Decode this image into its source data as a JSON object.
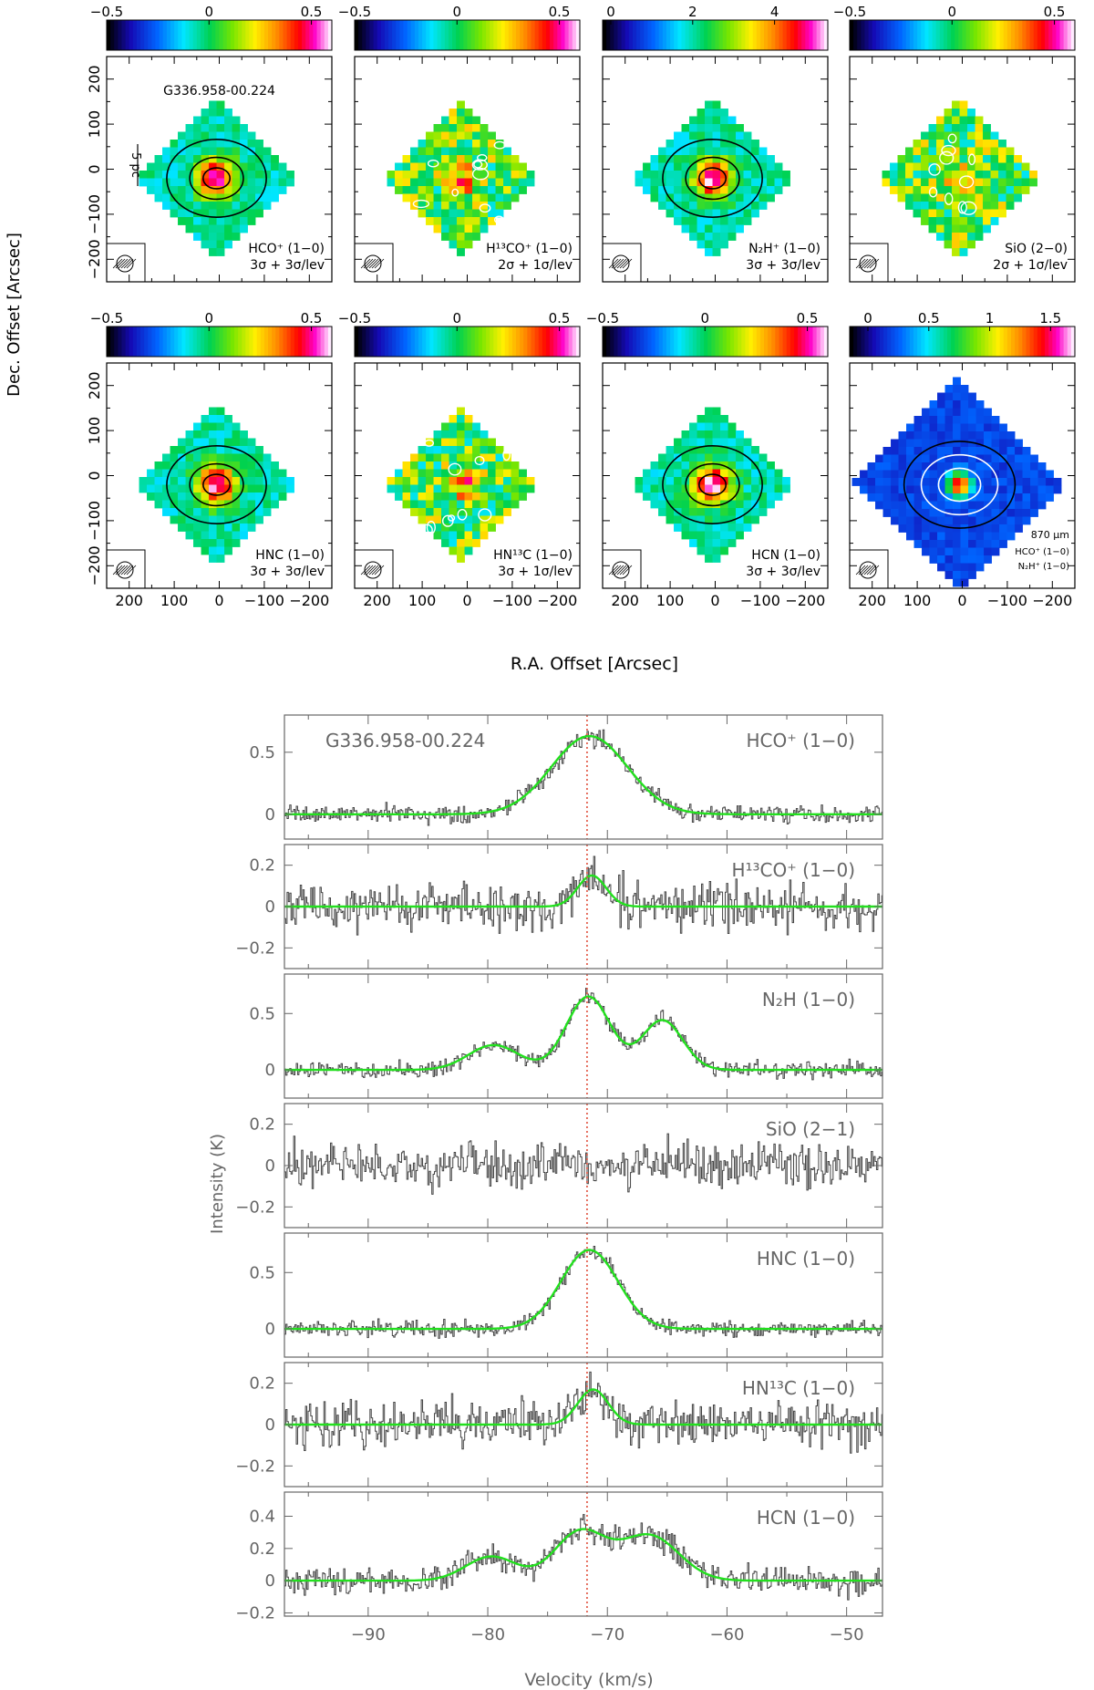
{
  "figure": {
    "source_name": "G336.958-00.224",
    "maps": {
      "xlabel": "R.A. Offset [Arcsec]",
      "ylabel": "Dec. Offset [Arcsec]",
      "x_ticks": [
        200,
        100,
        0,
        -100,
        -200
      ],
      "y_ticks": [
        200,
        100,
        0,
        -100,
        -200
      ],
      "scale_bar_label": "5 pc",
      "panels": [
        {
          "id": "hco",
          "line": "HCO⁺ (1−0)",
          "contours": "3σ + 3σ/lev",
          "colorbar_ticks": [
            "−0.5",
            "0",
            "0.5"
          ],
          "colorbar_range": [
            -0.5,
            0.6
          ],
          "show_source": true,
          "show_scalebar": true,
          "colormap": "rainbow",
          "peak_shape": "compact"
        },
        {
          "id": "h13co",
          "line": "H¹³CO⁺ (1−0)",
          "contours": "2σ + 1σ/lev",
          "colorbar_ticks": [
            "−0.5",
            "0",
            "0.5"
          ],
          "colorbar_range": [
            -0.5,
            0.6
          ],
          "colormap": "rainbow",
          "peak_shape": "noisy"
        },
        {
          "id": "n2h",
          "line": "N₂H⁺ (1−0)",
          "contours": "3σ + 3σ/lev",
          "colorbar_ticks": [
            "0",
            "2",
            "4"
          ],
          "colorbar_range": [
            -0.2,
            5.3
          ],
          "colormap": "rainbow",
          "peak_shape": "compact"
        },
        {
          "id": "sio",
          "line": "SiO (2−0)",
          "contours": "2σ + 1σ/lev",
          "colorbar_ticks": [
            "−0.5",
            "0",
            "0.5"
          ],
          "colorbar_range": [
            -0.5,
            0.6
          ],
          "colormap": "rainbow",
          "peak_shape": "noisy"
        },
        {
          "id": "hnc",
          "line": "HNC (1−0)",
          "contours": "3σ + 3σ/lev",
          "colorbar_ticks": [
            "−0.5",
            "0",
            "0.5"
          ],
          "colorbar_range": [
            -0.5,
            0.6
          ],
          "colormap": "rainbow",
          "peak_shape": "compact"
        },
        {
          "id": "hn13c",
          "line": "HN¹³C (1−0)",
          "contours": "3σ + 1σ/lev",
          "colorbar_ticks": [
            "−0.5",
            "0",
            "0.5"
          ],
          "colorbar_range": [
            -0.5,
            0.6
          ],
          "colormap": "rainbow",
          "peak_shape": "noisy"
        },
        {
          "id": "hcn",
          "line": "HCN (1−0)",
          "contours": "3σ + 3σ/lev",
          "colorbar_ticks": [
            "−0.5",
            "0",
            "0.5"
          ],
          "colorbar_range": [
            -0.5,
            0.6
          ],
          "colormap": "rainbow",
          "peak_shape": "compact"
        },
        {
          "id": "dust",
          "line": "870 μm",
          "legend_lines": [
            "HCO⁺ (1−0)",
            "N₂H⁺ (1−0)"
          ],
          "colorbar_ticks": [
            "0",
            "0.5",
            "1",
            "1.5"
          ],
          "colorbar_range": [
            -0.15,
            1.7
          ],
          "colormap": "rainbow",
          "peak_shape": "dust"
        }
      ]
    },
    "spectra": {
      "xlabel": "Velocity (km/s)",
      "ylabel": "Intensity (K)",
      "xlim": [
        -97,
        -47
      ],
      "x_ticks": [
        -90,
        -80,
        -70,
        -60,
        -50
      ],
      "vlsr_line": -71.7,
      "panels": [
        {
          "id": "hco",
          "label": "HCO⁺ (1−0)",
          "ylim": [
            -0.2,
            0.8
          ],
          "y_ticks": [
            0,
            0.5
          ],
          "noise": 0.06,
          "fit": [
            {
              "amp": 0.63,
              "v0": -71.5,
              "fwhm": 7.5
            }
          ]
        },
        {
          "id": "h13co",
          "label": "H¹³CO⁺ (1−0)",
          "ylim": [
            -0.3,
            0.3
          ],
          "y_ticks": [
            -0.2,
            0,
            0.2
          ],
          "noise": 0.09,
          "fit": [
            {
              "amp": 0.15,
              "v0": -71.3,
              "fwhm": 2.8
            }
          ]
        },
        {
          "id": "n2h",
          "label": "N₂H (1−0)",
          "ylim": [
            -0.25,
            0.85
          ],
          "y_ticks": [
            0,
            0.5
          ],
          "noise": 0.06,
          "fit": [
            {
              "amp": 0.22,
              "v0": -79.5,
              "fwhm": 5.0
            },
            {
              "amp": 0.65,
              "v0": -71.6,
              "fwhm": 4.3
            },
            {
              "amp": 0.44,
              "v0": -65.4,
              "fwhm": 4.0
            }
          ]
        },
        {
          "id": "sio",
          "label": "SiO (2−1)",
          "ylim": [
            -0.3,
            0.3
          ],
          "y_ticks": [
            -0.2,
            0,
            0.2
          ],
          "noise": 0.09,
          "fit": []
        },
        {
          "id": "hnc",
          "label": "HNC (1−0)",
          "ylim": [
            -0.25,
            0.85
          ],
          "y_ticks": [
            0,
            0.5
          ],
          "noise": 0.06,
          "fit": [
            {
              "amp": 0.7,
              "v0": -71.5,
              "fwhm": 5.6
            }
          ]
        },
        {
          "id": "hn13c",
          "label": "HN¹³C (1−0)",
          "ylim": [
            -0.3,
            0.3
          ],
          "y_ticks": [
            -0.2,
            0,
            0.2
          ],
          "noise": 0.09,
          "fit": [
            {
              "amp": 0.17,
              "v0": -71.2,
              "fwhm": 3.0
            }
          ]
        },
        {
          "id": "hcn",
          "label": "HCN (1−0)",
          "ylim": [
            -0.22,
            0.55
          ],
          "y_ticks": [
            -0.2,
            0,
            0.2,
            0.4
          ],
          "noise": 0.07,
          "fit": [
            {
              "amp": 0.15,
              "v0": -79.7,
              "fwhm": 5.0
            },
            {
              "amp": 0.3,
              "v0": -72.3,
              "fwhm": 5.0
            },
            {
              "amp": 0.28,
              "v0": -66.5,
              "fwhm": 5.8
            }
          ]
        }
      ]
    }
  },
  "chart_data": [
    {
      "type": "heatmap",
      "title": "",
      "xlabel": "R.A. Offset [Arcsec]",
      "ylabel": "Dec. Offset [Arcsec]",
      "xlim": [
        250,
        -250
      ],
      "ylim": [
        -250,
        250
      ],
      "panels": [
        "HCO⁺ (1−0)",
        "H¹³CO⁺ (1−0)",
        "N₂H⁺ (1−0)",
        "SiO (2−0)",
        "HNC (1−0)",
        "HN¹³C (1−0)",
        "HCN (1−0)",
        "870 μm"
      ]
    },
    {
      "type": "line",
      "title": "",
      "xlabel": "Velocity (km/s)",
      "ylabel": "Intensity (K)",
      "xlim": [
        -97,
        -47
      ],
      "series": [
        {
          "name": "HCO⁺ (1−0)",
          "peak": 0.63,
          "v0": -71.5
        },
        {
          "name": "H¹³CO⁺ (1−0)",
          "peak": 0.15,
          "v0": -71.3
        },
        {
          "name": "N₂H (1−0)",
          "peak": 0.65,
          "v0": -71.6
        },
        {
          "name": "SiO (2−1)",
          "peak": 0,
          "v0": null
        },
        {
          "name": "HNC (1−0)",
          "peak": 0.7,
          "v0": -71.5
        },
        {
          "name": "HN¹³C (1−0)",
          "peak": 0.17,
          "v0": -71.2
        },
        {
          "name": "HCN (1−0)",
          "peak": 0.3,
          "v0": -72.3
        }
      ]
    }
  ]
}
